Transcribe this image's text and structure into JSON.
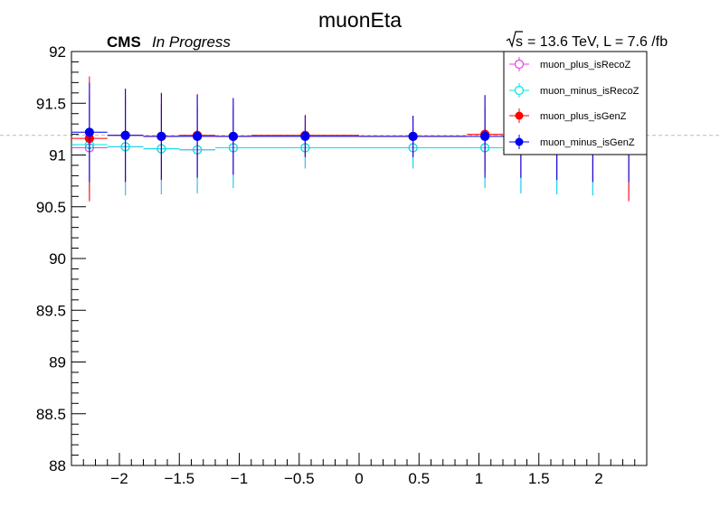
{
  "chart_data": {
    "type": "scatter",
    "title": "muonEta",
    "header_left_bold": "CMS",
    "header_left_italic": "In Progress",
    "header_right": "= 13.6 TeV, L = 7.6 /fb",
    "header_right_symbol": "s",
    "xlabel": "",
    "ylabel": "",
    "xlim": [
      -2.4,
      2.4
    ],
    "ylim": [
      88,
      92
    ],
    "x_ticks": [
      -2,
      -1.5,
      -1,
      -0.5,
      0,
      0.5,
      1,
      1.5,
      2
    ],
    "x_tick_labels": [
      "−2",
      "−1.5",
      "−1",
      "−0.5",
      "0",
      "0.5",
      "1",
      "1.5",
      "2"
    ],
    "y_ticks": [
      88,
      88.5,
      89,
      89.5,
      90,
      90.5,
      91,
      91.5,
      92
    ],
    "y_tick_labels": [
      "88",
      "88.5",
      "89",
      "89.5",
      "90",
      "90.5",
      "91",
      "91.5",
      "92"
    ],
    "reference_line_y": 91.19,
    "grid": false,
    "legend_position": "top-right",
    "bins": [
      [
        -2.4,
        -2.1
      ],
      [
        -2.1,
        -1.8
      ],
      [
        -1.8,
        -1.5
      ],
      [
        -1.5,
        -1.2
      ],
      [
        -1.2,
        -0.9
      ],
      [
        -0.9,
        0.0
      ],
      [
        0.0,
        0.9
      ],
      [
        0.9,
        1.2
      ],
      [
        1.2,
        1.5
      ],
      [
        1.5,
        1.8
      ],
      [
        1.8,
        2.1
      ],
      [
        2.1,
        2.4
      ]
    ],
    "series": [
      {
        "name": "muon_plus_isRecoZ",
        "color": "#e040e0",
        "marker": "open-circle",
        "x": [
          -2.25,
          -1.95,
          -1.65,
          -1.35,
          -1.05,
          -0.45,
          0.45,
          1.05,
          1.35,
          1.65,
          1.95,
          2.25
        ],
        "y": [
          91.07,
          91.08,
          91.06,
          91.05,
          91.07,
          91.07,
          91.07,
          91.07,
          91.05,
          91.06,
          91.08,
          91.07
        ],
        "err": [
          0.52,
          0.47,
          0.44,
          0.42,
          0.39,
          0.2,
          0.2,
          0.39,
          0.42,
          0.44,
          0.47,
          0.52
        ]
      },
      {
        "name": "muon_minus_isRecoZ",
        "color": "#00e5e5",
        "marker": "open-circle",
        "x": [
          -2.25,
          -1.95,
          -1.65,
          -1.35,
          -1.05,
          -0.45,
          0.45,
          1.05,
          1.35,
          1.65,
          1.95,
          2.25
        ],
        "y": [
          91.1,
          91.08,
          91.06,
          91.05,
          91.07,
          91.07,
          91.07,
          91.07,
          91.05,
          91.06,
          91.08,
          91.1
        ],
        "err": [
          0.45,
          0.47,
          0.44,
          0.42,
          0.39,
          0.2,
          0.2,
          0.39,
          0.42,
          0.44,
          0.47,
          0.45
        ]
      },
      {
        "name": "muon_plus_isGenZ",
        "color": "#ff0000",
        "marker": "filled-circle",
        "x": [
          -2.25,
          -1.95,
          -1.65,
          -1.35,
          -1.05,
          -0.45,
          0.45,
          1.05,
          1.35,
          1.65,
          1.95,
          2.25
        ],
        "y": [
          91.16,
          91.19,
          91.18,
          91.19,
          91.18,
          91.19,
          91.18,
          91.2,
          91.18,
          91.18,
          91.19,
          91.16
        ],
        "err": [
          0.6,
          0.45,
          0.42,
          0.4,
          0.37,
          0.2,
          0.2,
          0.37,
          0.4,
          0.42,
          0.45,
          0.6
        ]
      },
      {
        "name": "muon_minus_isGenZ",
        "color": "#0000ee",
        "marker": "filled-circle",
        "x": [
          -2.25,
          -1.95,
          -1.65,
          -1.35,
          -1.05,
          -0.45,
          0.45,
          1.05,
          1.35,
          1.65,
          1.95,
          2.25
        ],
        "y": [
          91.22,
          91.19,
          91.18,
          91.18,
          91.18,
          91.18,
          91.18,
          91.18,
          91.18,
          91.18,
          91.19,
          91.22
        ],
        "err": [
          0.48,
          0.45,
          0.42,
          0.4,
          0.37,
          0.2,
          0.2,
          0.4,
          0.4,
          0.42,
          0.45,
          0.48
        ]
      }
    ]
  }
}
